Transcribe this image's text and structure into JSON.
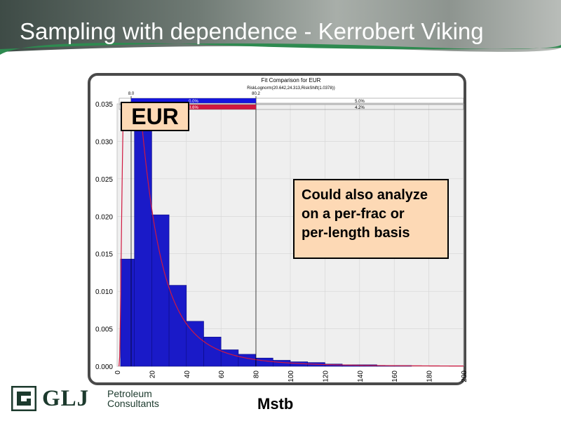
{
  "slide_title": "Sampling with dependence - Kerrobert Viking",
  "callouts": {
    "eur_label": "EUR",
    "note_lines": [
      "Could also analyze",
      "on a per-frac or",
      "per-length basis"
    ]
  },
  "x_unit_label": "Mstb",
  "logo": {
    "name": "GLJ",
    "line1": "Petroleum",
    "line2": "Consultants"
  },
  "colors": {
    "bar": "#1a1ac8",
    "fit_curve": "#d01840",
    "blue_band": "#1515e0",
    "red_band": "#d01840",
    "note_box": "#fdd9b5"
  },
  "chart_data": {
    "type": "bar",
    "title": "Fit Comparison for EUR",
    "subtitle": "RiskLognorm(20.642,24.313,RiskShift(1.0378))",
    "xlabel": "",
    "ylabel": "",
    "xlim": [
      0,
      200
    ],
    "ylim": [
      0,
      0.035
    ],
    "xticks": [
      "0",
      "20",
      "40",
      "60",
      "80",
      "100",
      "120",
      "140",
      "160",
      "180",
      "200"
    ],
    "yticks": [
      "0.000",
      "0.005",
      "0.010",
      "0.015",
      "0.020",
      "0.025",
      "0.030",
      "0.035"
    ],
    "grid": true,
    "bins": [
      {
        "x0": 2,
        "x1": 10,
        "value": 0.0143
      },
      {
        "x0": 10,
        "x1": 20,
        "value": 0.0317
      },
      {
        "x0": 20,
        "x1": 30,
        "value": 0.0202
      },
      {
        "x0": 30,
        "x1": 40,
        "value": 0.0108
      },
      {
        "x0": 40,
        "x1": 50,
        "value": 0.006
      },
      {
        "x0": 50,
        "x1": 60,
        "value": 0.0039
      },
      {
        "x0": 60,
        "x1": 70,
        "value": 0.0022
      },
      {
        "x0": 70,
        "x1": 80,
        "value": 0.0016
      },
      {
        "x0": 80,
        "x1": 90,
        "value": 0.0011
      },
      {
        "x0": 90,
        "x1": 100,
        "value": 0.0008
      },
      {
        "x0": 100,
        "x1": 110,
        "value": 0.0006
      },
      {
        "x0": 110,
        "x1": 120,
        "value": 0.0005
      },
      {
        "x0": 120,
        "x1": 130,
        "value": 0.0003
      },
      {
        "x0": 130,
        "x1": 140,
        "value": 0.0002
      },
      {
        "x0": 140,
        "x1": 150,
        "value": 0.0002
      },
      {
        "x0": 150,
        "x1": 160,
        "value": 0.0001
      },
      {
        "x0": 160,
        "x1": 170,
        "value": 0.0001
      }
    ],
    "fit": {
      "distribution": "lognormal",
      "mean": 20.642,
      "sd": 24.313,
      "shift": 1.0378
    },
    "markers": {
      "left": "8.0",
      "right": "80.2"
    },
    "percent_bands": [
      {
        "left": "0.0%",
        "right": "5.0%",
        "color": "blue"
      },
      {
        "left": "8.6%",
        "right": "4.2%",
        "color": "red"
      }
    ]
  }
}
